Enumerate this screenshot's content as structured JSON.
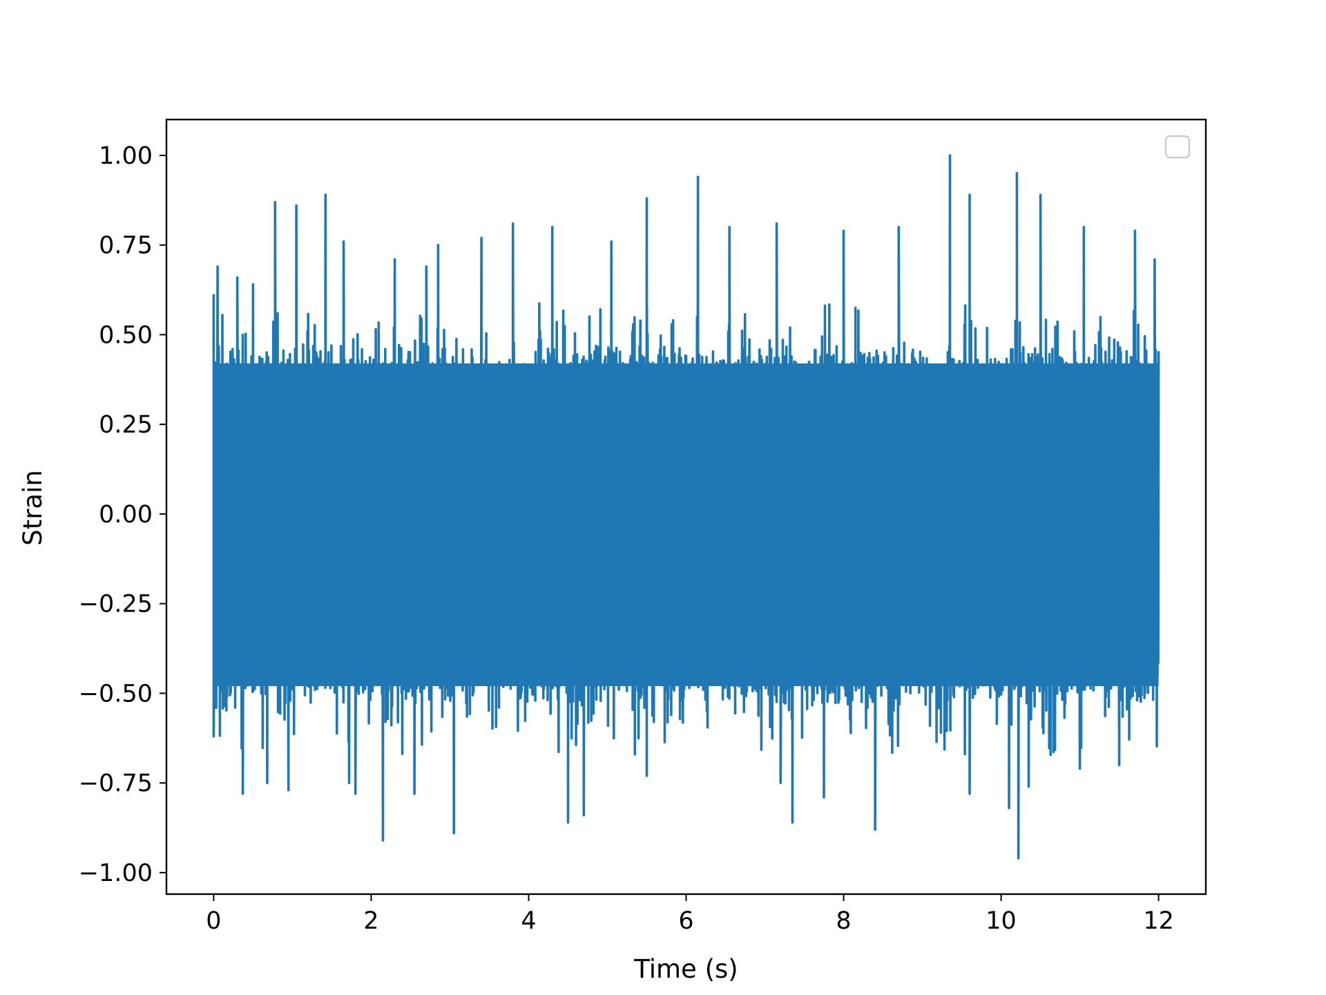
{
  "chart_data": {
    "type": "line",
    "xlabel": "Time (s)",
    "ylabel": "Strain",
    "xlim": [
      -0.6,
      12.6
    ],
    "ylim": [
      -1.06,
      1.1
    ],
    "x_ticks": [
      0,
      2,
      4,
      6,
      8,
      10,
      12
    ],
    "x_tick_labels": [
      "0",
      "2",
      "4",
      "6",
      "8",
      "10",
      "12"
    ],
    "y_ticks": [
      -1.0,
      -0.75,
      -0.5,
      -0.25,
      0.0,
      0.25,
      0.5,
      0.75,
      1.0
    ],
    "y_tick_labels": [
      "−1.00",
      "−0.75",
      "−0.50",
      "−0.25",
      "0.00",
      "0.25",
      "0.50",
      "0.75",
      "1.00"
    ],
    "grid": false,
    "legend": {
      "placement": "top-right",
      "entries": []
    },
    "series": [
      {
        "color": "#1f77b4",
        "x_start": 0,
        "x_end": 12,
        "band_upper": 0.42,
        "band_lower": -0.48,
        "peaks": [
          [
            0.0,
            0.61
          ],
          [
            0.05,
            0.69
          ],
          [
            0.3,
            0.66
          ],
          [
            0.5,
            0.64
          ],
          [
            0.78,
            0.87
          ],
          [
            1.05,
            0.86
          ],
          [
            1.42,
            0.89
          ],
          [
            1.65,
            0.76
          ],
          [
            2.3,
            0.71
          ],
          [
            2.7,
            0.69
          ],
          [
            2.85,
            0.75
          ],
          [
            3.4,
            0.77
          ],
          [
            3.8,
            0.81
          ],
          [
            4.3,
            0.8
          ],
          [
            5.05,
            0.76
          ],
          [
            5.5,
            0.88
          ],
          [
            6.15,
            0.94
          ],
          [
            6.55,
            0.8
          ],
          [
            7.15,
            0.81
          ],
          [
            8.0,
            0.79
          ],
          [
            8.7,
            0.8
          ],
          [
            9.35,
            1.0
          ],
          [
            9.6,
            0.89
          ],
          [
            10.2,
            0.95
          ],
          [
            10.5,
            0.89
          ],
          [
            11.05,
            0.8
          ],
          [
            11.7,
            0.79
          ],
          [
            11.95,
            0.71
          ]
        ],
        "troughs": [
          [
            0.0,
            -0.62
          ],
          [
            0.37,
            -0.78
          ],
          [
            0.68,
            -0.75
          ],
          [
            0.95,
            -0.77
          ],
          [
            1.72,
            -0.75
          ],
          [
            1.8,
            -0.78
          ],
          [
            2.15,
            -0.91
          ],
          [
            2.55,
            -0.78
          ],
          [
            3.05,
            -0.89
          ],
          [
            4.5,
            -0.86
          ],
          [
            4.7,
            -0.84
          ],
          [
            5.5,
            -0.73
          ],
          [
            7.2,
            -0.75
          ],
          [
            7.35,
            -0.86
          ],
          [
            7.75,
            -0.79
          ],
          [
            8.4,
            -0.88
          ],
          [
            9.6,
            -0.78
          ],
          [
            10.1,
            -0.82
          ],
          [
            10.22,
            -0.96
          ],
          [
            10.35,
            -0.76
          ],
          [
            11.0,
            -0.71
          ],
          [
            11.5,
            -0.7
          ]
        ]
      }
    ]
  }
}
